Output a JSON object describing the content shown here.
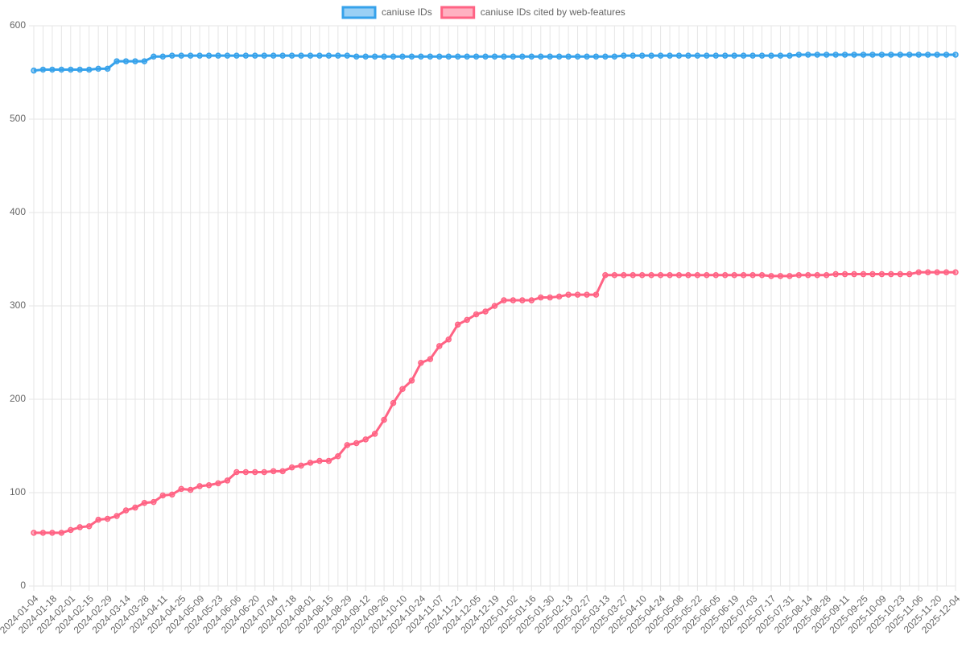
{
  "chart_data": {
    "type": "line",
    "categories": [
      "2024-01-04",
      null,
      "2024-01-18",
      null,
      "2024-02-01",
      null,
      "2024-02-15",
      null,
      "2024-02-29",
      null,
      "2024-03-14",
      null,
      "2024-03-28",
      null,
      "2024-04-11",
      null,
      "2024-04-25",
      null,
      "2024-05-09",
      null,
      "2024-05-23",
      null,
      "2024-06-06",
      null,
      "2024-06-20",
      null,
      "2024-07-04",
      null,
      "2024-07-18",
      null,
      "2024-08-01",
      null,
      "2024-08-15",
      null,
      "2024-08-29",
      null,
      "2024-09-12",
      null,
      "2024-09-26",
      null,
      "2024-10-10",
      null,
      "2024-10-24",
      null,
      "2024-11-07",
      null,
      "2024-11-21",
      null,
      "2024-12-05",
      null,
      "2024-12-19",
      null,
      "2025-01-02",
      null,
      "2025-01-16",
      null,
      "2025-01-30",
      null,
      "2025-02-13",
      null,
      "2025-02-27",
      null,
      "2025-03-13",
      null,
      "2025-03-27",
      null,
      "2025-04-10",
      null,
      "2025-04-24",
      null,
      "2025-05-08",
      null,
      "2025-05-22",
      null,
      "2025-06-05",
      null,
      "2025-06-19",
      null,
      "2025-07-03",
      null,
      "2025-07-17",
      null,
      "2025-07-31",
      null,
      "2025-08-14",
      null,
      "2025-08-28",
      null,
      "2025-09-11",
      null,
      "2025-09-25",
      null,
      "2025-10-09",
      null,
      "2025-10-23",
      null,
      "2025-11-06",
      null,
      "2025-11-20",
      null,
      "2025-12-04"
    ],
    "series": [
      {
        "name": "caniuse IDs",
        "color": "#36a2eb",
        "fill": "rgba(54,162,235,0.5)",
        "values": [
          552,
          553,
          553,
          553,
          553,
          553,
          553,
          554,
          554,
          562,
          562,
          562,
          562,
          567,
          567,
          568,
          568,
          568,
          568,
          568,
          568,
          568,
          568,
          568,
          568,
          568,
          568,
          568,
          568,
          568,
          568,
          568,
          568,
          568,
          568,
          567,
          567,
          567,
          567,
          567,
          567,
          567,
          567,
          567,
          567,
          567,
          567,
          567,
          567,
          567,
          567,
          567,
          567,
          567,
          567,
          567,
          567,
          567,
          567,
          567,
          567,
          567,
          567,
          567,
          568,
          568,
          568,
          568,
          568,
          568,
          568,
          568,
          568,
          568,
          568,
          568,
          568,
          568,
          568,
          568,
          568,
          568,
          568,
          569,
          569,
          569,
          569,
          569,
          569,
          569,
          569,
          569,
          569,
          569,
          569,
          569,
          569,
          569,
          569,
          569,
          569
        ]
      },
      {
        "name": "caniuse IDs cited by web-features",
        "color": "#ff6384",
        "fill": "rgba(255,99,132,0.5)",
        "values": [
          57,
          57,
          57,
          57,
          60,
          63,
          64,
          71,
          72,
          75,
          81,
          84,
          89,
          90,
          97,
          98,
          104,
          103,
          107,
          108,
          110,
          113,
          122,
          122,
          122,
          122,
          123,
          123,
          127,
          129,
          132,
          134,
          134,
          139,
          151,
          153,
          157,
          163,
          178,
          196,
          211,
          220,
          239,
          243,
          257,
          264,
          280,
          285,
          291,
          294,
          300,
          306,
          306,
          306,
          306,
          309,
          309,
          310,
          312,
          312,
          312,
          312,
          333,
          333,
          333,
          333,
          333,
          333,
          333,
          333,
          333,
          333,
          333,
          333,
          333,
          333,
          333,
          333,
          333,
          333,
          332,
          332,
          332,
          333,
          333,
          333,
          333,
          334,
          334,
          334,
          334,
          334,
          334,
          334,
          334,
          334,
          336,
          336,
          336,
          336,
          336
        ]
      }
    ],
    "ylim": [
      0,
      600
    ],
    "yticks": [
      0,
      100,
      200,
      300,
      400,
      500,
      600
    ],
    "grid": true,
    "legend": "top"
  }
}
